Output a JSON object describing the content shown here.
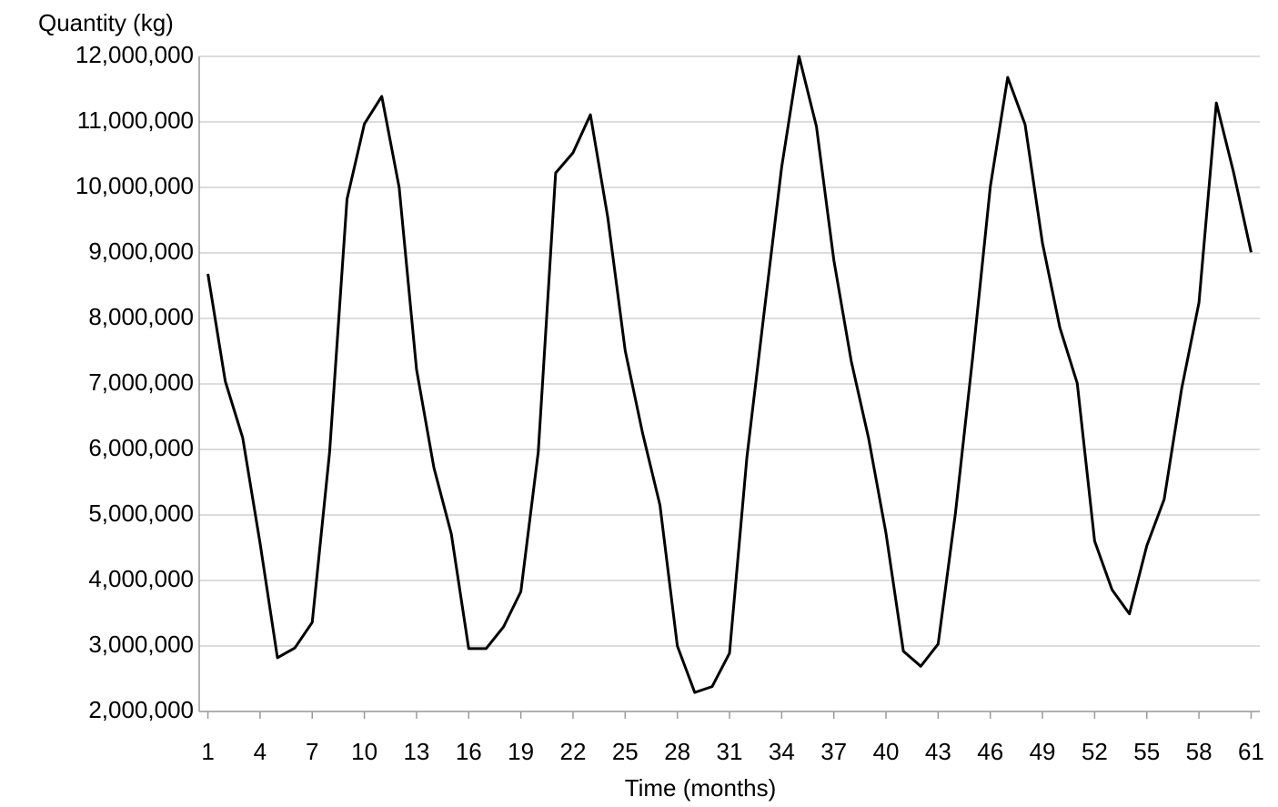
{
  "chart_data": {
    "type": "line",
    "y_label": "Quantity (kg)",
    "x_label": "Time (months)",
    "x": [
      1,
      2,
      3,
      4,
      5,
      6,
      7,
      8,
      9,
      10,
      11,
      12,
      13,
      14,
      15,
      16,
      17,
      18,
      19,
      20,
      21,
      22,
      23,
      24,
      25,
      26,
      27,
      28,
      29,
      30,
      31,
      32,
      33,
      34,
      35,
      36,
      37,
      38,
      39,
      40,
      41,
      42,
      43,
      44,
      45,
      46,
      47,
      48,
      49,
      50,
      51,
      52,
      53,
      54,
      55,
      56,
      57,
      58,
      59,
      60,
      61
    ],
    "series": [
      {
        "name": "Quantity",
        "color": "#000000",
        "values": [
          8680000,
          7040000,
          6180000,
          4570000,
          2820000,
          2970000,
          3360000,
          5960000,
          9820000,
          10970000,
          11390000,
          10000000,
          7220000,
          5720000,
          4710000,
          2960000,
          2960000,
          3290000,
          3830000,
          5960000,
          10220000,
          10530000,
          11110000,
          9540000,
          7510000,
          6250000,
          5150000,
          3000000,
          2290000,
          2380000,
          2890000,
          5880000,
          8110000,
          10310000,
          12000000,
          10930000,
          8890000,
          7350000,
          6170000,
          4720000,
          2920000,
          2690000,
          3030000,
          5040000,
          7440000,
          10010000,
          11680000,
          10960000,
          9150000,
          7860000,
          7010000,
          4600000,
          3860000,
          3490000,
          4530000,
          5240000,
          6920000,
          8240000,
          11290000,
          10220000,
          9010000
        ]
      }
    ],
    "xlim": [
      0.5,
      61.5
    ],
    "xticks": [
      1,
      4,
      7,
      10,
      13,
      16,
      19,
      22,
      25,
      28,
      31,
      34,
      37,
      40,
      43,
      46,
      49,
      52,
      55,
      58,
      61
    ],
    "ylim": [
      2000000,
      12000000
    ],
    "yticks": [
      {
        "value": 2000000,
        "label": "2,000,000"
      },
      {
        "value": 3000000,
        "label": "3,000,000"
      },
      {
        "value": 4000000,
        "label": "4,000,000"
      },
      {
        "value": 5000000,
        "label": "5,000,000"
      },
      {
        "value": 6000000,
        "label": "6,000,000"
      },
      {
        "value": 7000000,
        "label": "7,000,000"
      },
      {
        "value": 8000000,
        "label": "8,000,000"
      },
      {
        "value": 9000000,
        "label": "9,000,000"
      },
      {
        "value": 10000000,
        "label": "10,000,000"
      },
      {
        "value": 11000000,
        "label": "11,000,000"
      },
      {
        "value": 12000000,
        "label": "12,000,000"
      }
    ],
    "grid": true
  }
}
